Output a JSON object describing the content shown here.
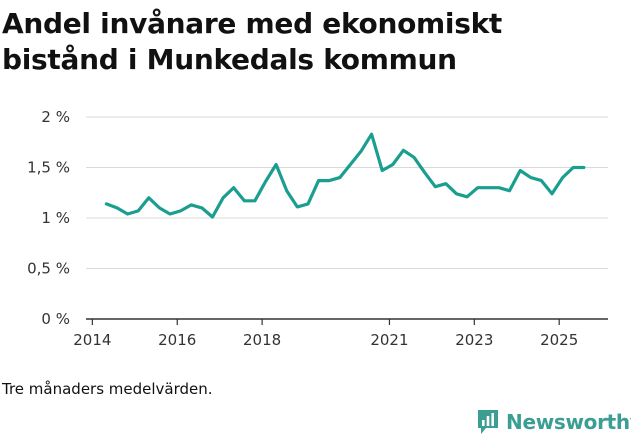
{
  "title": "Andel invånare med ekonomiskt bistånd i Munkedals kommun",
  "caption": "Tre månaders medelvärden.",
  "brand": {
    "name": "Newsworthy",
    "icon": "newsworthy-logo-icon",
    "color": "#3b9e92"
  },
  "colors": {
    "line": "#1a9e8f",
    "grid": "#d9d9d9",
    "axis": "#333333"
  },
  "chart_data": {
    "type": "line",
    "title": "Andel invånare med ekonomiskt bistånd i Munkedals kommun",
    "xlabel": "",
    "ylabel": "",
    "xlim": [
      2013.85,
      2026.15
    ],
    "ylim": [
      0,
      2
    ],
    "x_ticks": [
      2014,
      2016,
      2018,
      2021,
      2023,
      2025
    ],
    "y_ticks": [
      {
        "value": 0,
        "label": "0 %"
      },
      {
        "value": 0.5,
        "label": "0,5 %"
      },
      {
        "value": 1,
        "label": "1 %"
      },
      {
        "value": 1.5,
        "label": "1,5 %"
      },
      {
        "value": 2,
        "label": "2 %"
      }
    ],
    "grid": true,
    "series": [
      {
        "name": "Andel invånare med ekonomiskt bistånd",
        "x": [
          2014.33,
          2014.58,
          2014.83,
          2015.08,
          2015.33,
          2015.58,
          2015.83,
          2016.08,
          2016.33,
          2016.58,
          2016.83,
          2017.08,
          2017.33,
          2017.58,
          2017.83,
          2018.08,
          2018.33,
          2018.58,
          2018.83,
          2019.08,
          2019.33,
          2019.58,
          2019.83,
          2020.08,
          2020.33,
          2020.58,
          2020.83,
          2021.08,
          2021.33,
          2021.58,
          2021.83,
          2022.08,
          2022.33,
          2022.58,
          2022.83,
          2023.08,
          2023.33,
          2023.58,
          2023.83,
          2024.08,
          2024.33,
          2024.58,
          2024.83,
          2025.08,
          2025.33,
          2025.58
        ],
        "values": [
          1.14,
          1.1,
          1.04,
          1.07,
          1.2,
          1.1,
          1.04,
          1.07,
          1.13,
          1.1,
          1.01,
          1.2,
          1.3,
          1.17,
          1.17,
          1.36,
          1.53,
          1.27,
          1.11,
          1.14,
          1.37,
          1.37,
          1.4,
          1.53,
          1.66,
          1.83,
          1.47,
          1.53,
          1.67,
          1.6,
          1.45,
          1.31,
          1.34,
          1.24,
          1.21,
          1.3,
          1.3,
          1.3,
          1.27,
          1.47,
          1.4,
          1.37,
          1.24,
          1.4,
          1.5,
          1.5
        ]
      }
    ]
  }
}
